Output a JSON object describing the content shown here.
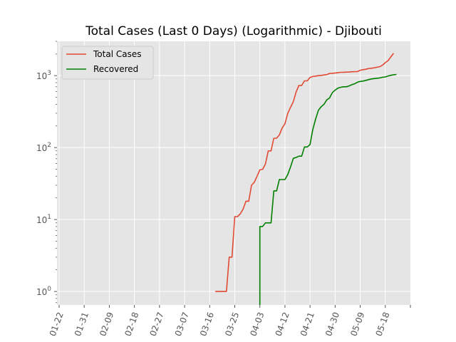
{
  "chart_data": {
    "type": "line",
    "title": "Total Cases (Last 0 Days) (Logarithmic) - Djibouti",
    "xlabel": "",
    "ylabel": "",
    "y_scale": "log",
    "ylim": [
      0.65,
      3000
    ],
    "x_ticks": [
      "01-22",
      "01-31",
      "02-09",
      "02-18",
      "02-27",
      "03-07",
      "03-16",
      "03-25",
      "04-03",
      "04-12",
      "04-21",
      "04-30",
      "05-09",
      "05-18"
    ],
    "y_ticks": [
      {
        "value": 1,
        "label": "10^0"
      },
      {
        "value": 10,
        "label": "10^1"
      },
      {
        "value": 100,
        "label": "10^2"
      },
      {
        "value": 1000,
        "label": "10^3"
      }
    ],
    "grid": true,
    "legend_position": "top-left",
    "series": [
      {
        "name": "Total Cases",
        "color": "#e24a33",
        "points": [
          [
            "03-18",
            1
          ],
          [
            "03-19",
            1
          ],
          [
            "03-20",
            1
          ],
          [
            "03-21",
            1
          ],
          [
            "03-22",
            1
          ],
          [
            "03-23",
            3
          ],
          [
            "03-24",
            3
          ],
          [
            "03-25",
            11
          ],
          [
            "03-26",
            11
          ],
          [
            "03-27",
            12
          ],
          [
            "03-28",
            14
          ],
          [
            "03-29",
            18
          ],
          [
            "03-30",
            18
          ],
          [
            "03-31",
            30
          ],
          [
            "04-01",
            33
          ],
          [
            "04-02",
            40
          ],
          [
            "04-03",
            49
          ],
          [
            "04-04",
            50
          ],
          [
            "04-05",
            59
          ],
          [
            "04-06",
            90
          ],
          [
            "04-07",
            90
          ],
          [
            "04-08",
            135
          ],
          [
            "04-09",
            135
          ],
          [
            "04-10",
            150
          ],
          [
            "04-11",
            187
          ],
          [
            "04-12",
            214
          ],
          [
            "04-13",
            298
          ],
          [
            "04-14",
            363
          ],
          [
            "04-15",
            435
          ],
          [
            "04-16",
            591
          ],
          [
            "04-17",
            732
          ],
          [
            "04-18",
            732
          ],
          [
            "04-19",
            846
          ],
          [
            "04-20",
            846
          ],
          [
            "04-21",
            945
          ],
          [
            "04-22",
            974
          ],
          [
            "04-23",
            986
          ],
          [
            "04-24",
            999
          ],
          [
            "04-25",
            1008
          ],
          [
            "04-26",
            1023
          ],
          [
            "04-27",
            1035
          ],
          [
            "04-28",
            1072
          ],
          [
            "04-29",
            1077
          ],
          [
            "04-30",
            1089
          ],
          [
            "05-01",
            1097
          ],
          [
            "05-02",
            1112
          ],
          [
            "05-03",
            1116
          ],
          [
            "05-04",
            1120
          ],
          [
            "05-05",
            1124
          ],
          [
            "05-06",
            1133
          ],
          [
            "05-07",
            1135
          ],
          [
            "05-08",
            1140
          ],
          [
            "05-09",
            1189
          ],
          [
            "05-10",
            1210
          ],
          [
            "05-11",
            1227
          ],
          [
            "05-12",
            1256
          ],
          [
            "05-13",
            1268
          ],
          [
            "05-14",
            1284
          ],
          [
            "05-15",
            1309
          ],
          [
            "05-16",
            1331
          ],
          [
            "05-17",
            1401
          ],
          [
            "05-18",
            1518
          ],
          [
            "05-19",
            1618
          ],
          [
            "05-20",
            1828
          ],
          [
            "05-21",
            2047
          ]
        ]
      },
      {
        "name": "Recovered",
        "color": "#008000",
        "points": [
          [
            "04-03",
            0.5
          ],
          [
            "04-03",
            8
          ],
          [
            "04-04",
            8
          ],
          [
            "04-05",
            9
          ],
          [
            "04-06",
            9
          ],
          [
            "04-07",
            9
          ],
          [
            "04-08",
            25
          ],
          [
            "04-09",
            25
          ],
          [
            "04-10",
            36
          ],
          [
            "04-11",
            36
          ],
          [
            "04-12",
            36
          ],
          [
            "04-13",
            42
          ],
          [
            "04-14",
            54
          ],
          [
            "04-15",
            71
          ],
          [
            "04-16",
            73
          ],
          [
            "04-17",
            76
          ],
          [
            "04-18",
            76
          ],
          [
            "04-19",
            102
          ],
          [
            "04-20",
            102
          ],
          [
            "04-21",
            110
          ],
          [
            "04-22",
            180
          ],
          [
            "04-23",
            250
          ],
          [
            "04-24",
            330
          ],
          [
            "04-25",
            370
          ],
          [
            "04-26",
            400
          ],
          [
            "04-27",
            460
          ],
          [
            "04-28",
            490
          ],
          [
            "04-29",
            580
          ],
          [
            "04-30",
            630
          ],
          [
            "05-01",
            670
          ],
          [
            "05-02",
            690
          ],
          [
            "05-03",
            700
          ],
          [
            "05-04",
            700
          ],
          [
            "05-05",
            720
          ],
          [
            "05-06",
            750
          ],
          [
            "05-07",
            770
          ],
          [
            "05-08",
            810
          ],
          [
            "05-09",
            830
          ],
          [
            "05-10",
            840
          ],
          [
            "05-11",
            860
          ],
          [
            "05-12",
            880
          ],
          [
            "05-13",
            900
          ],
          [
            "05-14",
            910
          ],
          [
            "05-15",
            920
          ],
          [
            "05-16",
            930
          ],
          [
            "05-17",
            950
          ],
          [
            "05-18",
            960
          ],
          [
            "05-19",
            990
          ],
          [
            "05-20",
            1010
          ],
          [
            "05-21",
            1030
          ],
          [
            "05-22",
            1040
          ]
        ]
      }
    ]
  }
}
